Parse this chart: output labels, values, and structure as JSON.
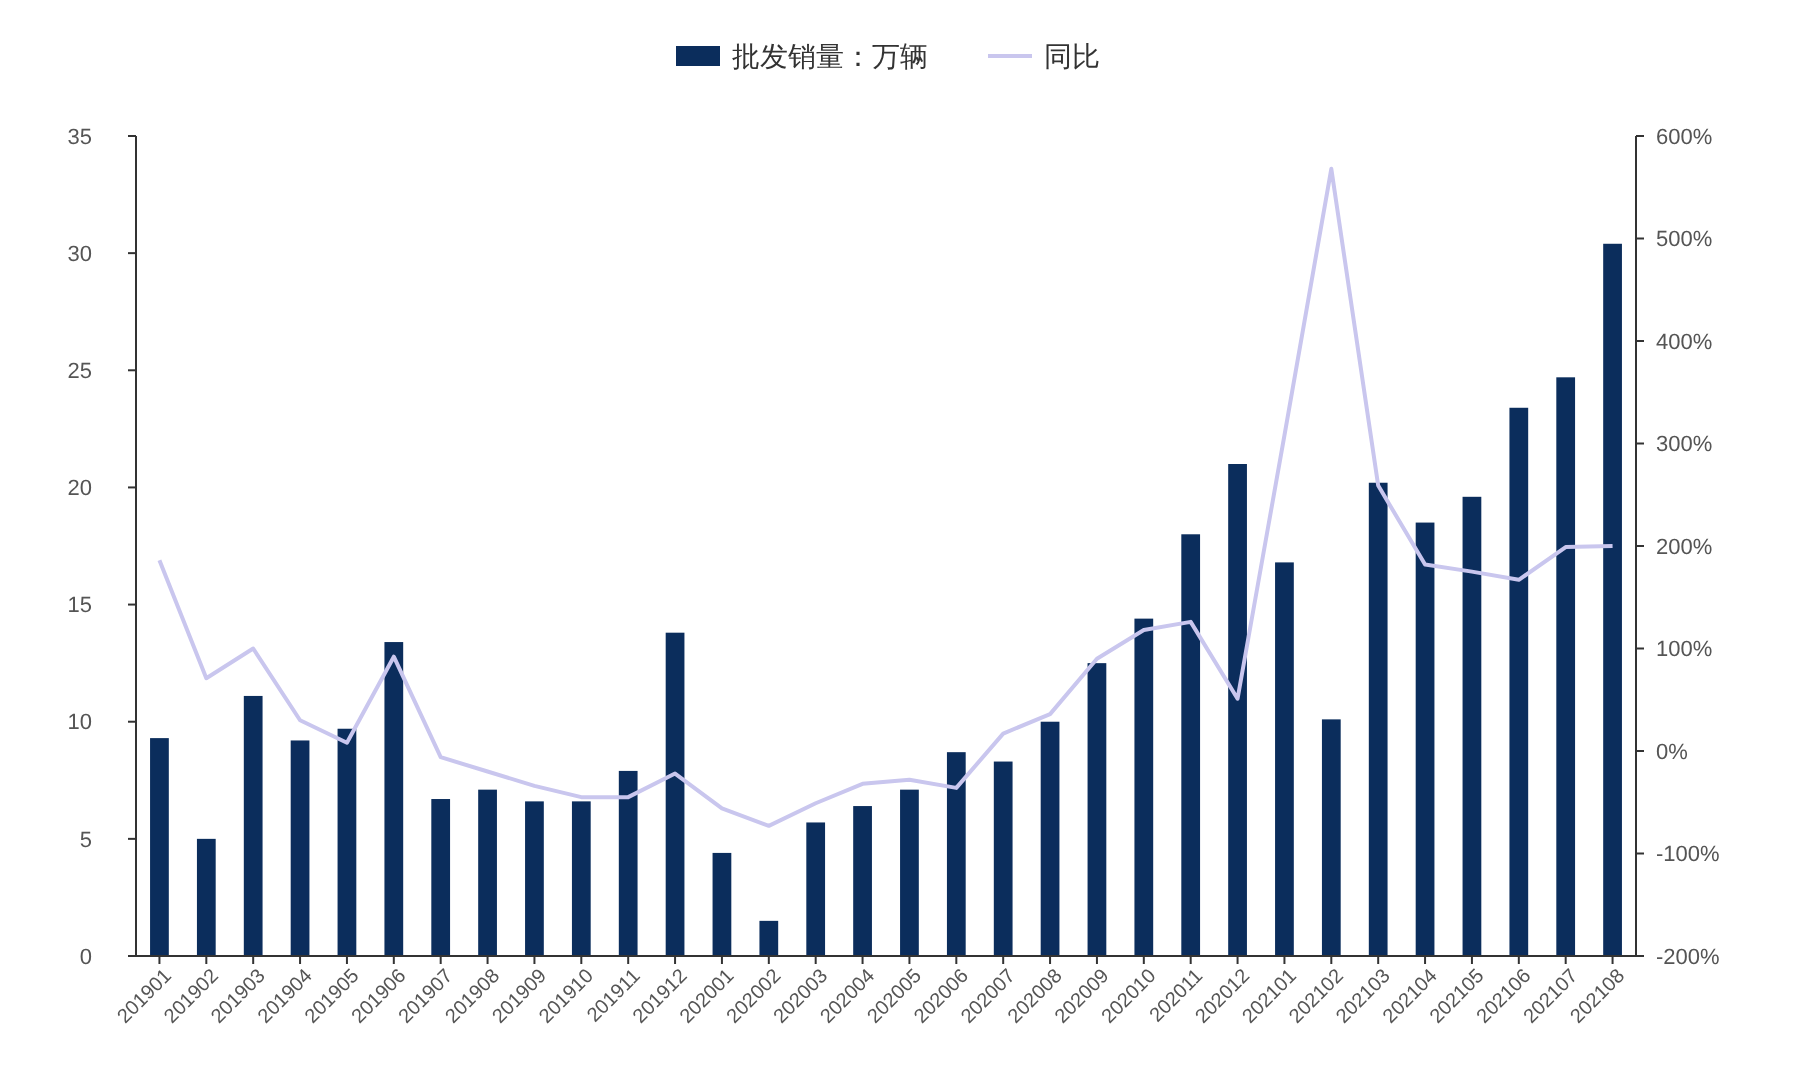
{
  "chart_data": {
    "type": "bar",
    "categories": [
      "201901",
      "201902",
      "201903",
      "201904",
      "201905",
      "201906",
      "201907",
      "201908",
      "201909",
      "201910",
      "201911",
      "201912",
      "202001",
      "202002",
      "202003",
      "202004",
      "202005",
      "202006",
      "202007",
      "202008",
      "202009",
      "202010",
      "202011",
      "202012",
      "202101",
      "202102",
      "202103",
      "202104",
      "202105",
      "202106",
      "202107",
      "202108"
    ],
    "series": [
      {
        "name": "批发销量：万辆",
        "color": "#0b2d5c",
        "values": [
          9.3,
          5.0,
          11.1,
          9.2,
          9.7,
          13.4,
          6.7,
          7.1,
          6.6,
          6.6,
          7.9,
          13.8,
          4.4,
          1.5,
          5.7,
          6.4,
          7.1,
          8.7,
          8.3,
          10.0,
          12.5,
          14.4,
          18.0,
          21.0,
          16.8,
          10.1,
          20.2,
          18.5,
          19.6,
          23.4,
          24.7,
          30.4
        ]
      },
      {
        "name": "同比",
        "type": "line",
        "axis": "y2",
        "color": "#c9c6ee",
        "values": [
          186,
          71,
          100,
          30,
          8,
          92,
          -6,
          -20,
          -34,
          -45,
          -45,
          -22,
          -56,
          -73,
          -51,
          -32,
          -28,
          -36,
          17,
          36,
          90,
          118,
          126,
          51,
          308,
          568,
          259,
          182,
          175,
          167,
          199,
          200
        ]
      }
    ],
    "ylim": [
      0,
      35
    ],
    "yticks": [
      0,
      5,
      10,
      15,
      20,
      25,
      30,
      35
    ],
    "y2lim": [
      -200,
      600
    ],
    "y2ticks": [
      {
        "value": -200,
        "label": "-200%"
      },
      {
        "value": -100,
        "label": "-100%"
      },
      {
        "value": 0,
        "label": "0%"
      },
      {
        "value": 100,
        "label": "100%"
      },
      {
        "value": 200,
        "label": "200%"
      },
      {
        "value": 300,
        "label": "300%"
      },
      {
        "value": 400,
        "label": "400%"
      },
      {
        "value": 500,
        "label": "500%"
      },
      {
        "value": 600,
        "label": "600%"
      }
    ],
    "grid": false,
    "legend": "top",
    "marker": "none",
    "line_style": "solid"
  }
}
